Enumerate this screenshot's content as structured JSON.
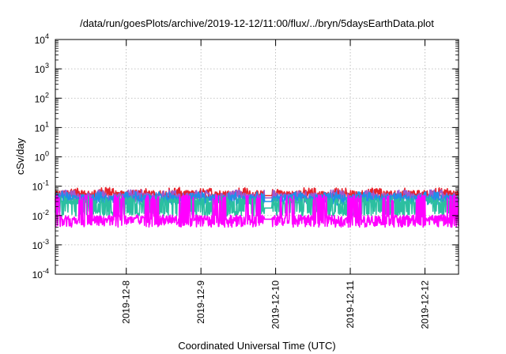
{
  "chart_data": {
    "type": "line",
    "title": "/data/run/goesPlots/archive/2019-12-12/11:00/flux/../bryn/5daysEarthData.plot",
    "xlabel": "Coordinated Universal Time (UTC)",
    "ylabel": "cSv/day",
    "yscale": "log",
    "ylim_exp": [
      -4,
      4
    ],
    "y_tick_exponents": [
      -4,
      -3,
      -2,
      -1,
      0,
      1,
      2,
      3,
      4
    ],
    "y_tick_base": "10",
    "x_range_days": [
      7.05,
      12.45
    ],
    "x_ticks": [
      {
        "day": 8,
        "label": "2019-12-8"
      },
      {
        "day": 9,
        "label": "2019-12-9"
      },
      {
        "day": 10,
        "label": "2019-12-10"
      },
      {
        "day": 11,
        "label": "2019-12-11"
      },
      {
        "day": 12,
        "label": "2019-12-12"
      }
    ],
    "grid": true,
    "gap_days": [
      9.85,
      9.95
    ],
    "series": [
      {
        "color": "#e8242c",
        "base": 0.055,
        "low": 0.045,
        "spike": 0.09,
        "lowgap": 0.048
      },
      {
        "color": "#9b59d0",
        "base": 0.045,
        "low": 0.035,
        "spike": 0.075,
        "lowgap": 0.04
      },
      {
        "color": "#1e8fe8",
        "base": 0.04,
        "low": 0.028,
        "spike": 0.065,
        "lowgap": 0.03
      },
      {
        "color": "#2bbfa0",
        "base": 0.03,
        "low": 0.012,
        "spike": 0.045,
        "lowgap": 0.018
      },
      {
        "color": "#ff00ff",
        "base": 0.008,
        "low": 0.005,
        "spike": 0.05,
        "lowgap": 0.0075
      }
    ]
  }
}
